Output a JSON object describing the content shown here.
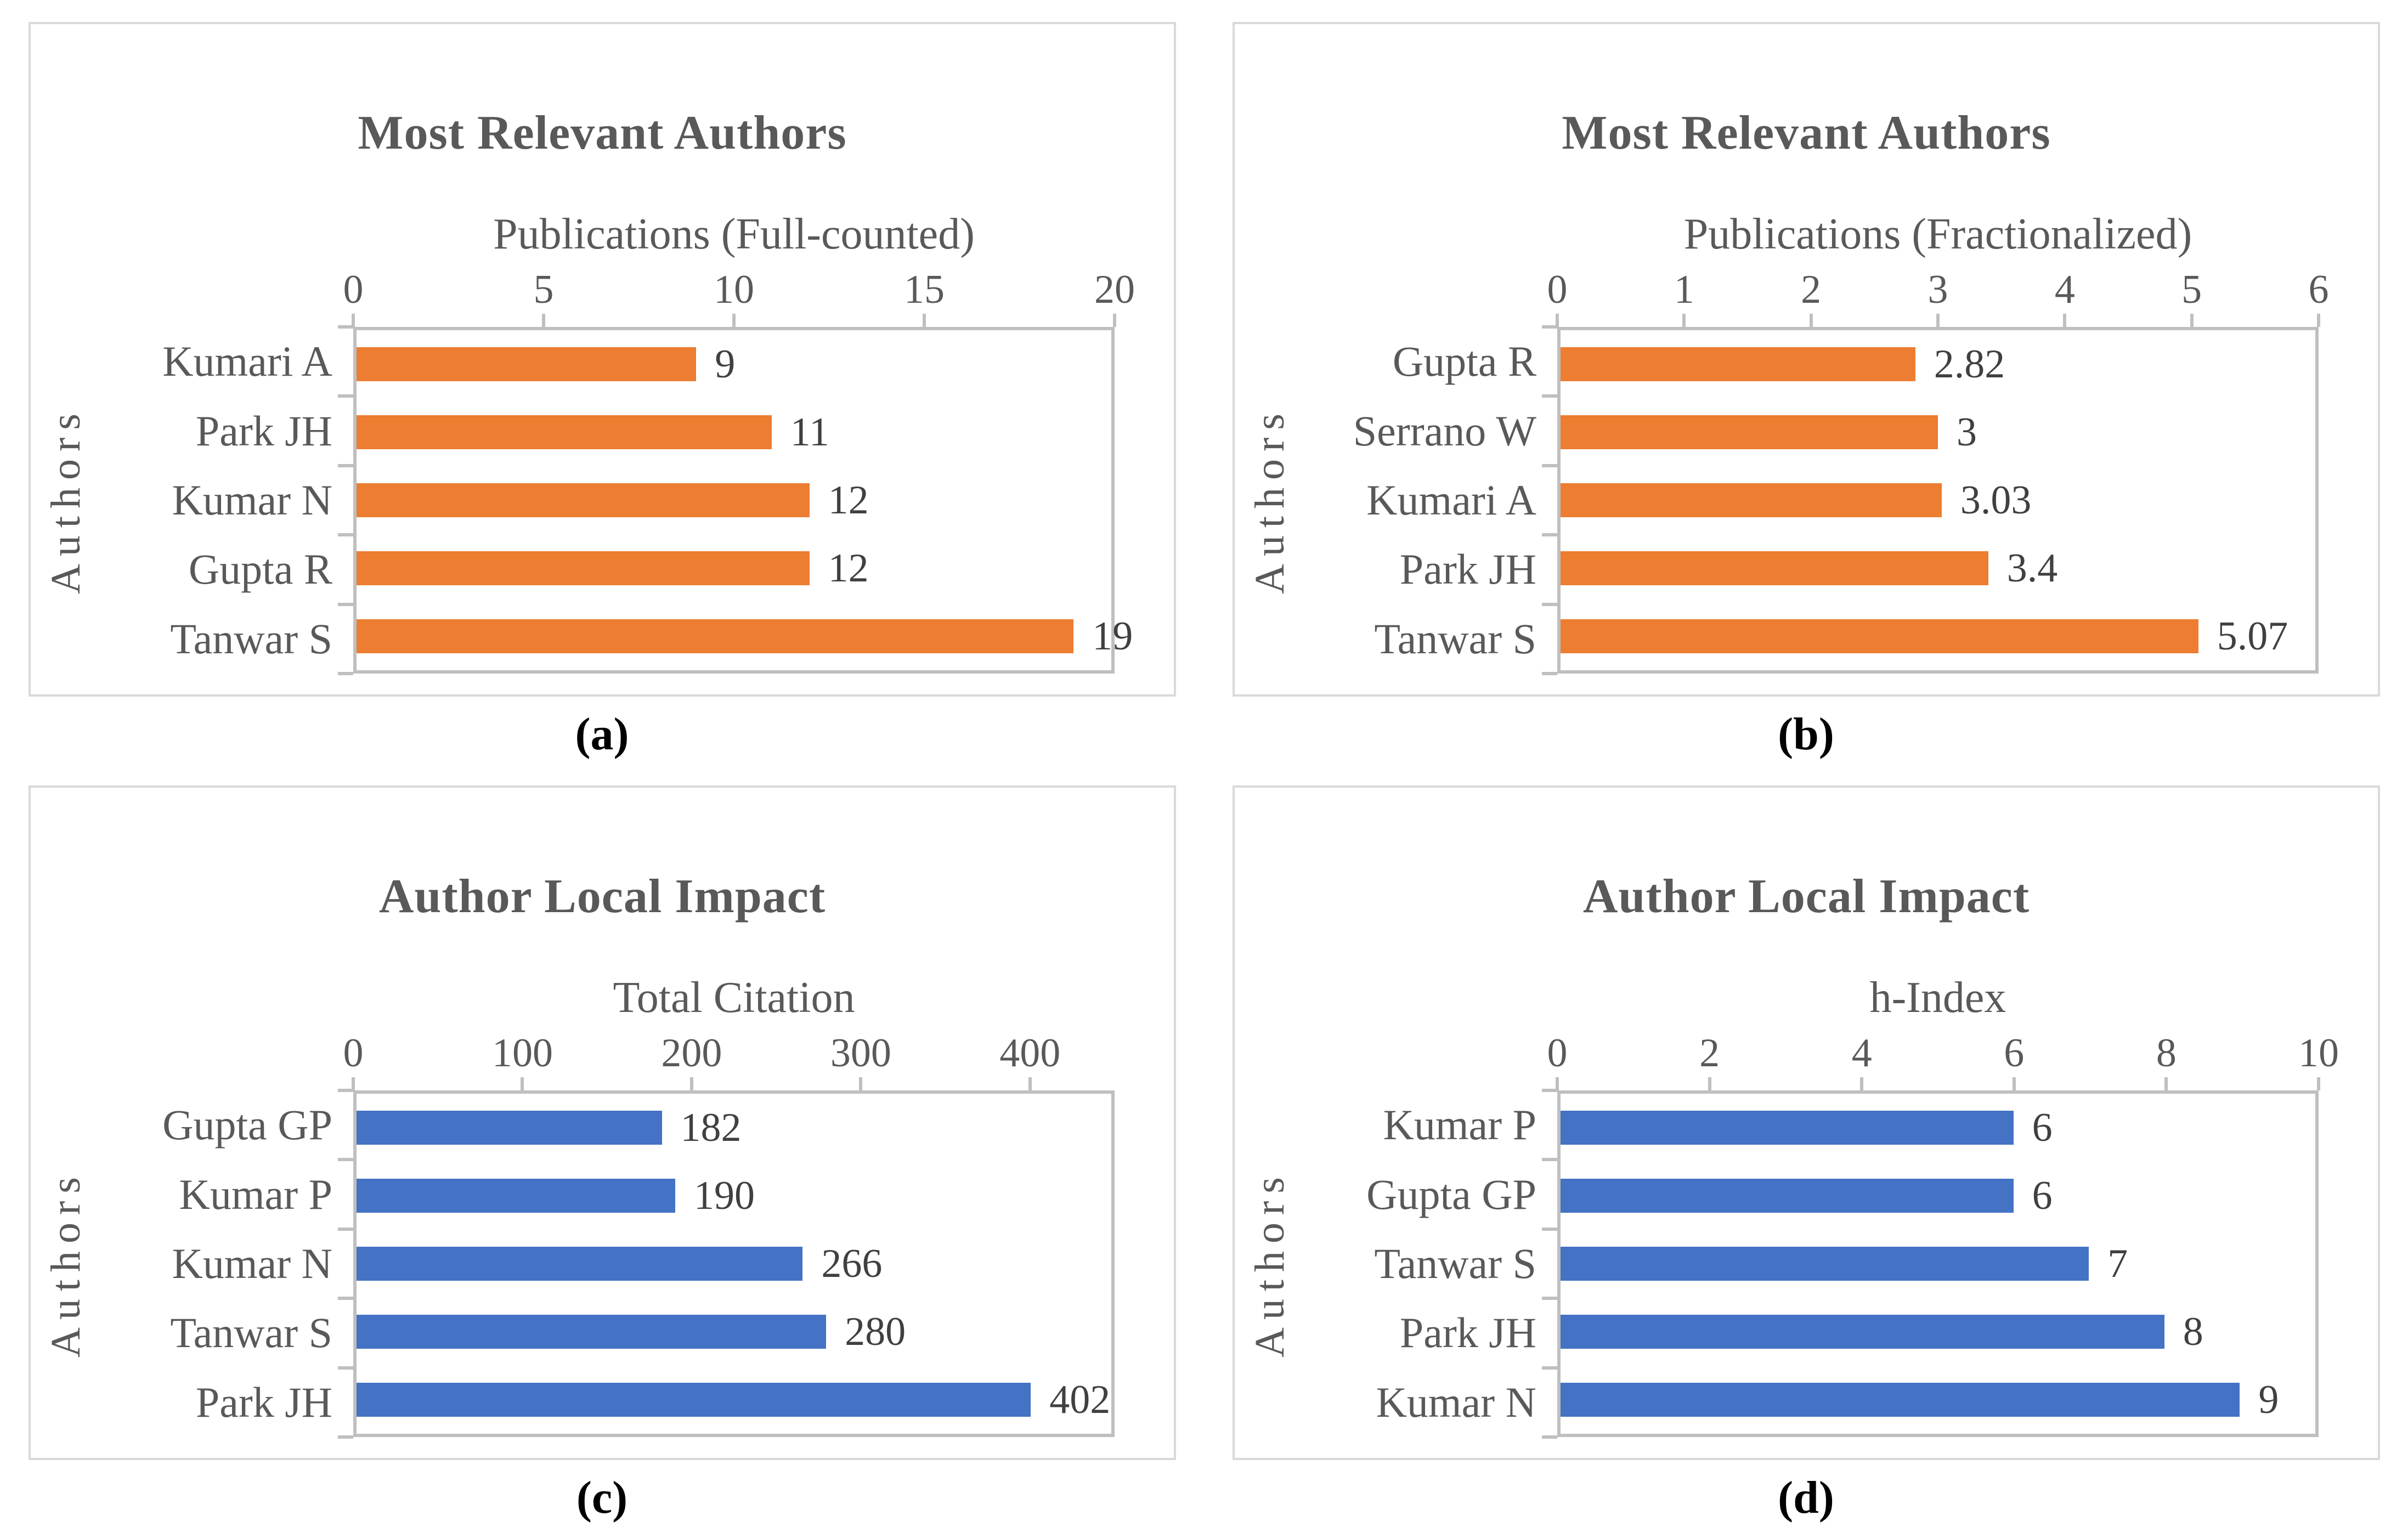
{
  "figure": {
    "background": "#FFFFFF",
    "panel_border_color": "#D9D9D9",
    "axis_color": "#BFBFBF",
    "text_color": "#595959",
    "value_label_color": "#404040",
    "caption_color": "#000000",
    "accent_orange": "#ED7D31",
    "accent_blue": "#4472C4"
  },
  "chart_data": [
    {
      "type": "bar",
      "orientation": "horizontal",
      "caption": "(a)",
      "title": "Most Relevant Authors",
      "xlabel": "Publications (Full-counted)",
      "ylabel": "Authors",
      "bar_color": "#ED7D31",
      "grid": false,
      "legend": false,
      "xlim": [
        0,
        20
      ],
      "xticks": [
        0,
        5,
        10,
        15,
        20
      ],
      "xtick_labels": [
        "0",
        "5",
        "10",
        "15",
        "20"
      ],
      "categories": [
        "Kumari A",
        "Park JH",
        "Kumar N",
        "Gupta R",
        "Tanwar S"
      ],
      "values": [
        9,
        11,
        12,
        12,
        19
      ],
      "value_labels": [
        "9",
        "11",
        "12",
        "12",
        "19"
      ]
    },
    {
      "type": "bar",
      "orientation": "horizontal",
      "caption": "(b)",
      "title": "Most Relevant Authors",
      "xlabel": "Publications (Fractionalized)",
      "ylabel": "Authors",
      "bar_color": "#ED7D31",
      "grid": false,
      "legend": false,
      "xlim": [
        0,
        6
      ],
      "xticks": [
        0,
        1,
        2,
        3,
        4,
        5,
        6
      ],
      "xtick_labels": [
        "0",
        "1",
        "2",
        "3",
        "4",
        "5",
        "6"
      ],
      "categories": [
        "Gupta R",
        "Serrano W",
        "Kumari A",
        "Park JH",
        "Tanwar S"
      ],
      "values": [
        2.82,
        3,
        3.03,
        3.4,
        5.07
      ],
      "value_labels": [
        "2.82",
        "3",
        "3.03",
        "3.4",
        "5.07"
      ]
    },
    {
      "type": "bar",
      "orientation": "horizontal",
      "caption": "(c)",
      "title": "Author Local Impact",
      "xlabel": "Total Citation",
      "ylabel": "Authors",
      "bar_color": "#4472C4",
      "grid": false,
      "legend": false,
      "xlim": [
        0,
        450
      ],
      "xticks": [
        0,
        100,
        200,
        300,
        400
      ],
      "xtick_labels": [
        "0",
        "100",
        "200",
        "300",
        "400"
      ],
      "categories": [
        "Gupta GP",
        "Kumar P",
        "Kumar N",
        "Tanwar S",
        "Park JH"
      ],
      "values": [
        182,
        190,
        266,
        280,
        402
      ],
      "value_labels": [
        "182",
        "190",
        "266",
        "280",
        "402"
      ]
    },
    {
      "type": "bar",
      "orientation": "horizontal",
      "caption": "(d)",
      "title": "Author Local Impact",
      "xlabel": "h-Index",
      "ylabel": "Authors",
      "bar_color": "#4472C4",
      "grid": false,
      "legend": false,
      "xlim": [
        0,
        10
      ],
      "xticks": [
        0,
        2,
        4,
        6,
        8,
        10
      ],
      "xtick_labels": [
        "0",
        "2",
        "4",
        "6",
        "8",
        "10"
      ],
      "categories": [
        "Kumar P",
        "Gupta GP",
        "Tanwar S",
        "Park JH",
        "Kumar N"
      ],
      "values": [
        6,
        6,
        7,
        8,
        9
      ],
      "value_labels": [
        "6",
        "6",
        "7",
        "8",
        "9"
      ]
    }
  ]
}
